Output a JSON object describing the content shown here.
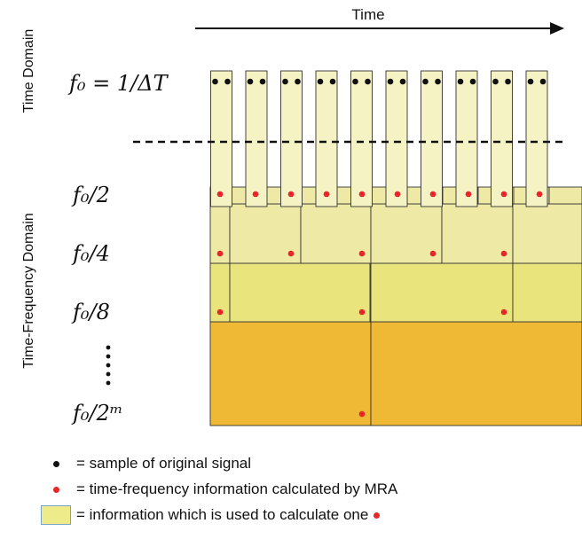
{
  "time_label": "Time",
  "side_labels": {
    "time_domain": "Time Domain",
    "time_frequency_domain": "Time-Frequency Domain"
  },
  "frequency_labels": [
    "f₀ = 1/ΔT",
    "f₀/2",
    "f₀/4",
    "f₀/8",
    "f₀/2ᵐ"
  ],
  "legend": {
    "sample": "= sample of original signal",
    "tf_info": "= time-frequency information calculated by MRA",
    "used_info": "= information which is used to calculate one"
  },
  "colors": {
    "level0": "#f5f2c4",
    "level1": "#eeeaa6",
    "level2": "#e9e57c",
    "level3": "#f0b935",
    "black_dot": "#111111",
    "red_dot": "#e8262a",
    "outline": "#333333"
  }
}
